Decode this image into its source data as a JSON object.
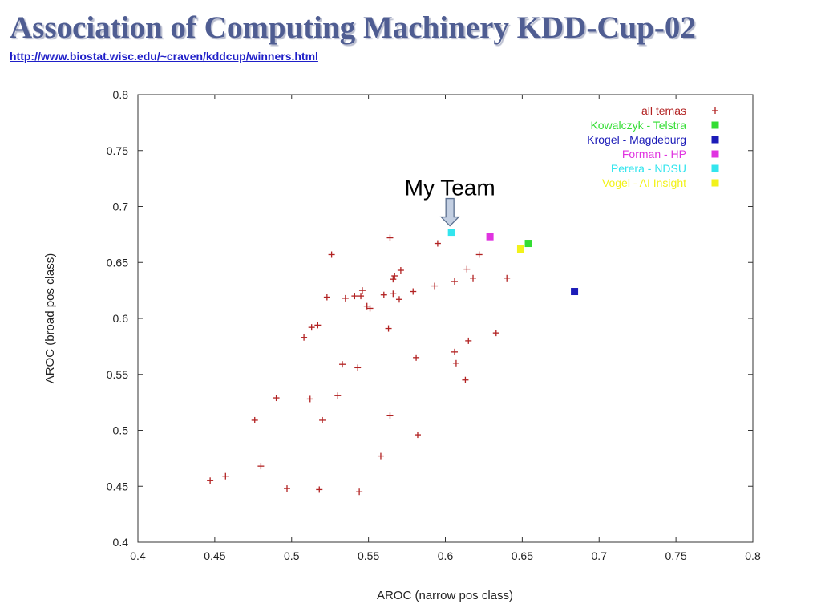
{
  "slide": {
    "title": "Association of Computing Machinery KDD-Cup-02",
    "link": "http://www.biostat.wisc.edu/~craven/kddcup/winners.html"
  },
  "chart_data": {
    "type": "scatter",
    "title": "",
    "xlabel": "AROC (narrow pos class)",
    "ylabel": "AROC (broad pos class)",
    "xlim": [
      0.4,
      0.8
    ],
    "ylim": [
      0.4,
      0.8
    ],
    "x_ticks": [
      "0.4",
      "0.45",
      "0.5",
      "0.55",
      "0.6",
      "0.65",
      "0.7",
      "0.75",
      "0.8"
    ],
    "y_ticks": [
      "0.4",
      "0.45",
      "0.5",
      "0.55",
      "0.6",
      "0.65",
      "0.7",
      "0.75",
      "0.8"
    ],
    "grid": false,
    "legend": "top-right",
    "series": [
      {
        "name": "all temas",
        "marker": "plus",
        "color": "#b22222",
        "points": [
          [
            0.447,
            0.455
          ],
          [
            0.457,
            0.459
          ],
          [
            0.476,
            0.509
          ],
          [
            0.48,
            0.468
          ],
          [
            0.49,
            0.529
          ],
          [
            0.497,
            0.448
          ],
          [
            0.508,
            0.583
          ],
          [
            0.512,
            0.528
          ],
          [
            0.513,
            0.592
          ],
          [
            0.517,
            0.594
          ],
          [
            0.518,
            0.447
          ],
          [
            0.52,
            0.509
          ],
          [
            0.523,
            0.619
          ],
          [
            0.526,
            0.657
          ],
          [
            0.53,
            0.531
          ],
          [
            0.533,
            0.559
          ],
          [
            0.535,
            0.618
          ],
          [
            0.541,
            0.62
          ],
          [
            0.543,
            0.556
          ],
          [
            0.544,
            0.445
          ],
          [
            0.545,
            0.62
          ],
          [
            0.546,
            0.625
          ],
          [
            0.549,
            0.611
          ],
          [
            0.551,
            0.609
          ],
          [
            0.558,
            0.477
          ],
          [
            0.56,
            0.621
          ],
          [
            0.563,
            0.591
          ],
          [
            0.564,
            0.672
          ],
          [
            0.564,
            0.513
          ],
          [
            0.566,
            0.622
          ],
          [
            0.566,
            0.635
          ],
          [
            0.567,
            0.638
          ],
          [
            0.57,
            0.617
          ],
          [
            0.571,
            0.643
          ],
          [
            0.579,
            0.624
          ],
          [
            0.581,
            0.565
          ],
          [
            0.582,
            0.496
          ],
          [
            0.593,
            0.629
          ],
          [
            0.595,
            0.667
          ],
          [
            0.606,
            0.633
          ],
          [
            0.606,
            0.57
          ],
          [
            0.607,
            0.56
          ],
          [
            0.613,
            0.545
          ],
          [
            0.614,
            0.644
          ],
          [
            0.615,
            0.58
          ],
          [
            0.618,
            0.636
          ],
          [
            0.622,
            0.657
          ],
          [
            0.633,
            0.587
          ],
          [
            0.64,
            0.636
          ]
        ]
      },
      {
        "name": "Kowalczyk - Telstra",
        "marker": "square",
        "color": "#33dd33",
        "points": [
          [
            0.654,
            0.667
          ]
        ]
      },
      {
        "name": "Krogel - Magdeburg",
        "marker": "square",
        "color": "#1c1cb8",
        "points": [
          [
            0.684,
            0.624
          ]
        ]
      },
      {
        "name": "Forman - HP",
        "marker": "square",
        "color": "#e033e0",
        "points": [
          [
            0.629,
            0.673
          ]
        ]
      },
      {
        "name": "Perera - NDSU",
        "marker": "square",
        "color": "#33e5ee",
        "points": [
          [
            0.604,
            0.677
          ]
        ]
      },
      {
        "name": "Vogel - AI Insight",
        "marker": "square",
        "color": "#f2f21a",
        "points": [
          [
            0.649,
            0.662
          ]
        ]
      }
    ],
    "annotations": [
      {
        "text": "My Team",
        "target": [
          0.604,
          0.677
        ],
        "arrow": "down"
      }
    ]
  }
}
